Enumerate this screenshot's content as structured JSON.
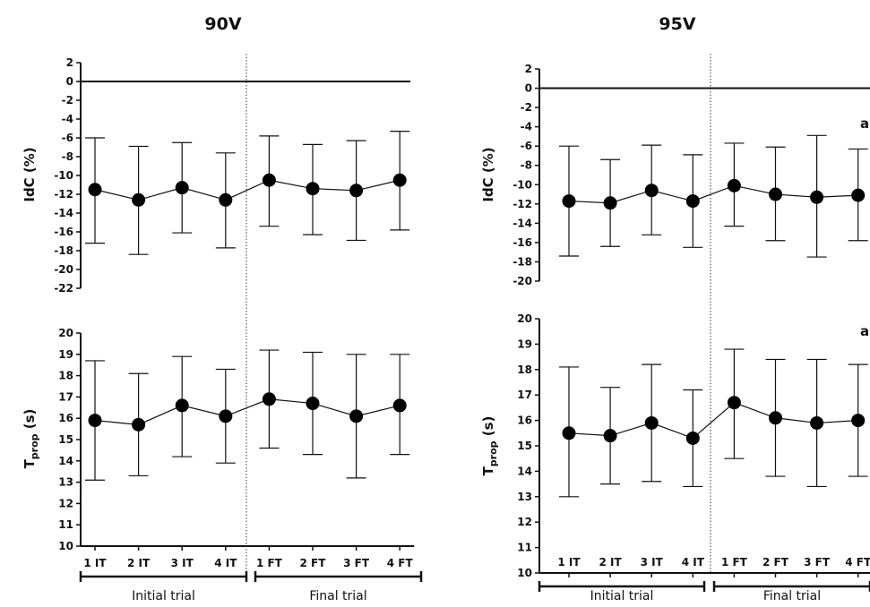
{
  "figure": {
    "panel_titles": [
      "90V",
      "95V"
    ],
    "group_labels": [
      "Initial trial",
      "Final trial"
    ],
    "annotation": "a"
  },
  "chart_data": [
    {
      "type": "line",
      "title": "90V",
      "ylabel": "IdC (%)",
      "categories": [
        "1 IT",
        "2 IT",
        "3 IT",
        "4 IT",
        "1 FT",
        "2 FT",
        "3 FT",
        "4 FT"
      ],
      "ylim": [
        -22,
        2
      ],
      "yticks": [
        2,
        0,
        -2,
        -4,
        -6,
        -8,
        -10,
        -12,
        -14,
        -16,
        -18,
        -20,
        -22
      ],
      "reference_line": 0,
      "series": [
        {
          "values": [
            -11.5,
            -12.6,
            -11.3,
            -12.6,
            -10.5,
            -11.4,
            -11.6,
            -10.5
          ],
          "err_low": [
            -17.2,
            -18.4,
            -16.1,
            -17.7,
            -15.4,
            -16.3,
            -16.9,
            -15.8
          ],
          "err_high": [
            -6.0,
            -6.9,
            -6.5,
            -7.6,
            -5.8,
            -6.7,
            -6.3,
            -5.3
          ]
        }
      ],
      "annotation": ""
    },
    {
      "type": "line",
      "title": "",
      "ylabel": "Tprop (s)",
      "categories": [
        "1 IT",
        "2 IT",
        "3 IT",
        "4 IT",
        "1 FT",
        "2 FT",
        "3 FT",
        "4 FT"
      ],
      "ylim": [
        10,
        20
      ],
      "yticks": [
        20,
        19,
        18,
        17,
        16,
        15,
        14,
        13,
        12,
        11,
        10
      ],
      "series": [
        {
          "values": [
            15.9,
            15.7,
            16.6,
            16.1,
            16.9,
            16.7,
            16.1,
            16.6
          ],
          "err_low": [
            13.1,
            13.3,
            14.2,
            13.9,
            14.6,
            14.3,
            13.2,
            14.3
          ],
          "err_high": [
            18.7,
            18.1,
            18.9,
            18.3,
            19.2,
            19.1,
            19.0,
            19.0
          ]
        }
      ],
      "annotation": ""
    },
    {
      "type": "line",
      "title": "95V",
      "ylabel": "IdC (%)",
      "categories": [
        "1 IT",
        "2 IT",
        "3 IT",
        "4 IT",
        "1 FT",
        "2 FT",
        "3 FT",
        "4 FT"
      ],
      "ylim": [
        -20,
        2
      ],
      "yticks": [
        2,
        0,
        -2,
        -4,
        -6,
        -8,
        -10,
        -12,
        -14,
        -16,
        -18,
        -20
      ],
      "reference_line": 0,
      "series": [
        {
          "values": [
            -11.7,
            -11.9,
            -10.6,
            -11.7,
            -10.1,
            -11.0,
            -11.3,
            -11.1
          ],
          "err_low": [
            -17.4,
            -16.4,
            -15.2,
            -16.5,
            -14.3,
            -15.8,
            -17.5,
            -15.8
          ],
          "err_high": [
            -6.0,
            -7.4,
            -5.9,
            -6.9,
            -5.7,
            -6.1,
            -4.9,
            -6.3
          ]
        }
      ],
      "annotation": "a"
    },
    {
      "type": "line",
      "title": "",
      "ylabel": "Tprop (s)",
      "categories": [
        "1 IT",
        "2 IT",
        "3 IT",
        "4 IT",
        "1 FT",
        "2 FT",
        "3 FT",
        "4 FT"
      ],
      "ylim": [
        10,
        20
      ],
      "yticks": [
        20,
        19,
        18,
        17,
        16,
        15,
        14,
        13,
        12,
        11,
        10
      ],
      "series": [
        {
          "values": [
            15.5,
            15.4,
            15.9,
            15.3,
            16.7,
            16.1,
            15.9,
            16.0
          ],
          "err_low": [
            13.0,
            13.5,
            13.6,
            13.4,
            14.5,
            13.8,
            13.4,
            13.8
          ],
          "err_high": [
            18.1,
            17.3,
            18.2,
            17.2,
            18.8,
            18.4,
            18.4,
            18.2
          ]
        }
      ],
      "annotation": "a"
    }
  ]
}
